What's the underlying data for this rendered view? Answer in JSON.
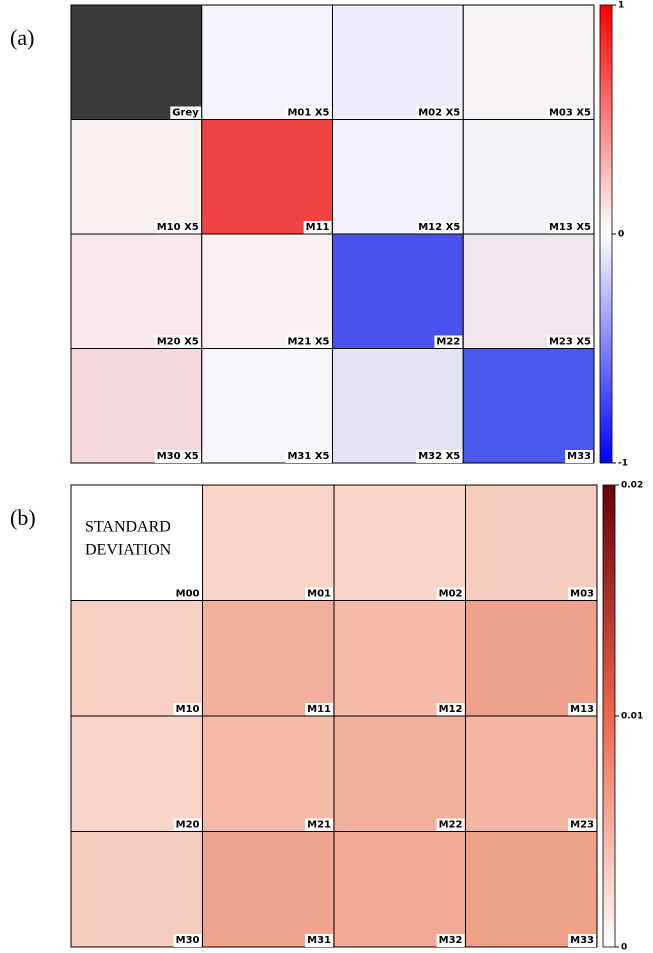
{
  "panels": [
    {
      "tag": "(a)",
      "tiles": [
        {
          "label": "Grey",
          "color": "#3a3a3a"
        },
        {
          "label": "M01 X5",
          "color": "#f4f2fa"
        },
        {
          "label": "M02 X5",
          "color": "#eeeefa"
        },
        {
          "label": "M03 X5",
          "color": "#f8f2f4"
        },
        {
          "label": "M10 X5",
          "color": "#fbf0f0"
        },
        {
          "label": "M11",
          "color": "#ee4444"
        },
        {
          "label": "M12 X5",
          "color": "#f2f2fa"
        },
        {
          "label": "M13 X5",
          "color": "#f4f2f8"
        },
        {
          "label": "M20 X5",
          "color": "#f8e8ec"
        },
        {
          "label": "M21 X5",
          "color": "#faf0f2"
        },
        {
          "label": "M22",
          "color": "#4a52ee"
        },
        {
          "label": "M23 X5",
          "color": "#f0e6ee"
        },
        {
          "label": "M30 X5",
          "color": "#f6d8dc"
        },
        {
          "label": "M31 X5",
          "color": "#f8f6fa"
        },
        {
          "label": "M32 X5",
          "color": "#e4e4f4"
        },
        {
          "label": "M33",
          "color": "#4a58ee"
        }
      ],
      "colorbar": {
        "colors": [
          "#ff0000",
          "#ffffff",
          "#0000ff"
        ],
        "lim": [
          -1,
          1
        ],
        "ticks": [
          1,
          0,
          -1
        ]
      }
    },
    {
      "tag": "(b)",
      "note_lines": [
        "STANDARD",
        "DEVIATION"
      ],
      "tiles": [
        {
          "label": "M00",
          "color": "#ffffff"
        },
        {
          "label": "M01",
          "color": "#f8d4c6"
        },
        {
          "label": "M02",
          "color": "#f8d4c6"
        },
        {
          "label": "M03",
          "color": "#f6cdbd"
        },
        {
          "label": "M10",
          "color": "#f8d0c2"
        },
        {
          "label": "M11",
          "color": "#f1b09c"
        },
        {
          "label": "M12",
          "color": "#f3bba8"
        },
        {
          "label": "M13",
          "color": "#ee a08a"
        },
        {
          "label": "M20",
          "color": "#f8d4c6"
        },
        {
          "label": "M21",
          "color": "#f3baa6"
        },
        {
          "label": "M22",
          "color": "#f1b09b"
        },
        {
          "label": "M23",
          "color": "#f2b5a2"
        },
        {
          "label": "M30",
          "color": "#f6ccbc"
        },
        {
          "label": "M31",
          "color": "#efa58e"
        },
        {
          "label": "M32",
          "color": "#f0aa94"
        },
        {
          "label": "M33",
          "color": "#ee a089"
        }
      ],
      "colorbar": {
        "colors": [
          "#67000d",
          "#ef6548",
          "#ffffff"
        ],
        "lim": [
          0,
          0.02
        ],
        "ticks": [
          0.02,
          0.01,
          0
        ]
      }
    }
  ]
}
